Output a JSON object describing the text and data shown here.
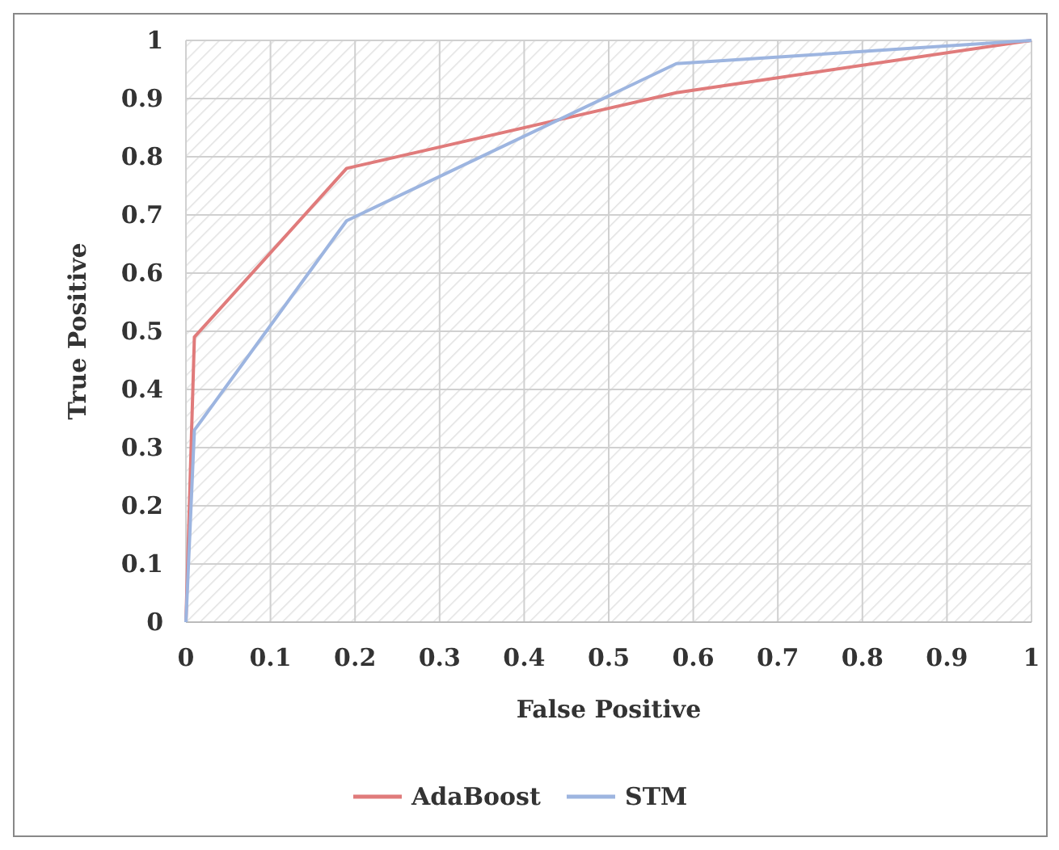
{
  "chart_data": {
    "type": "line",
    "xlabel": "False Positive",
    "ylabel": "True Positive",
    "series": [
      {
        "name": "AdaBoost",
        "color": "#e07b7b",
        "x": [
          0,
          0.01,
          0.19,
          0.58,
          1
        ],
        "values": [
          0,
          0.49,
          0.78,
          0.91,
          1
        ]
      },
      {
        "name": "STM",
        "color": "#9db5e0",
        "x": [
          0,
          0.01,
          0.19,
          0.58,
          1
        ],
        "values": [
          0,
          0.33,
          0.69,
          0.96,
          1
        ]
      }
    ],
    "xlim": [
      0,
      1
    ],
    "xticks": [
      0,
      0.1,
      0.2,
      0.3,
      0.4,
      0.5,
      0.6,
      0.7,
      0.8,
      0.9,
      1
    ],
    "ylim": [
      0,
      1
    ],
    "yticks": [
      0,
      0.1,
      0.2,
      0.3,
      0.4,
      0.5,
      0.6,
      0.7,
      0.8,
      0.9,
      1
    ],
    "grid": true,
    "legend": "bottom",
    "marker": "none",
    "line_style": "solid"
  }
}
